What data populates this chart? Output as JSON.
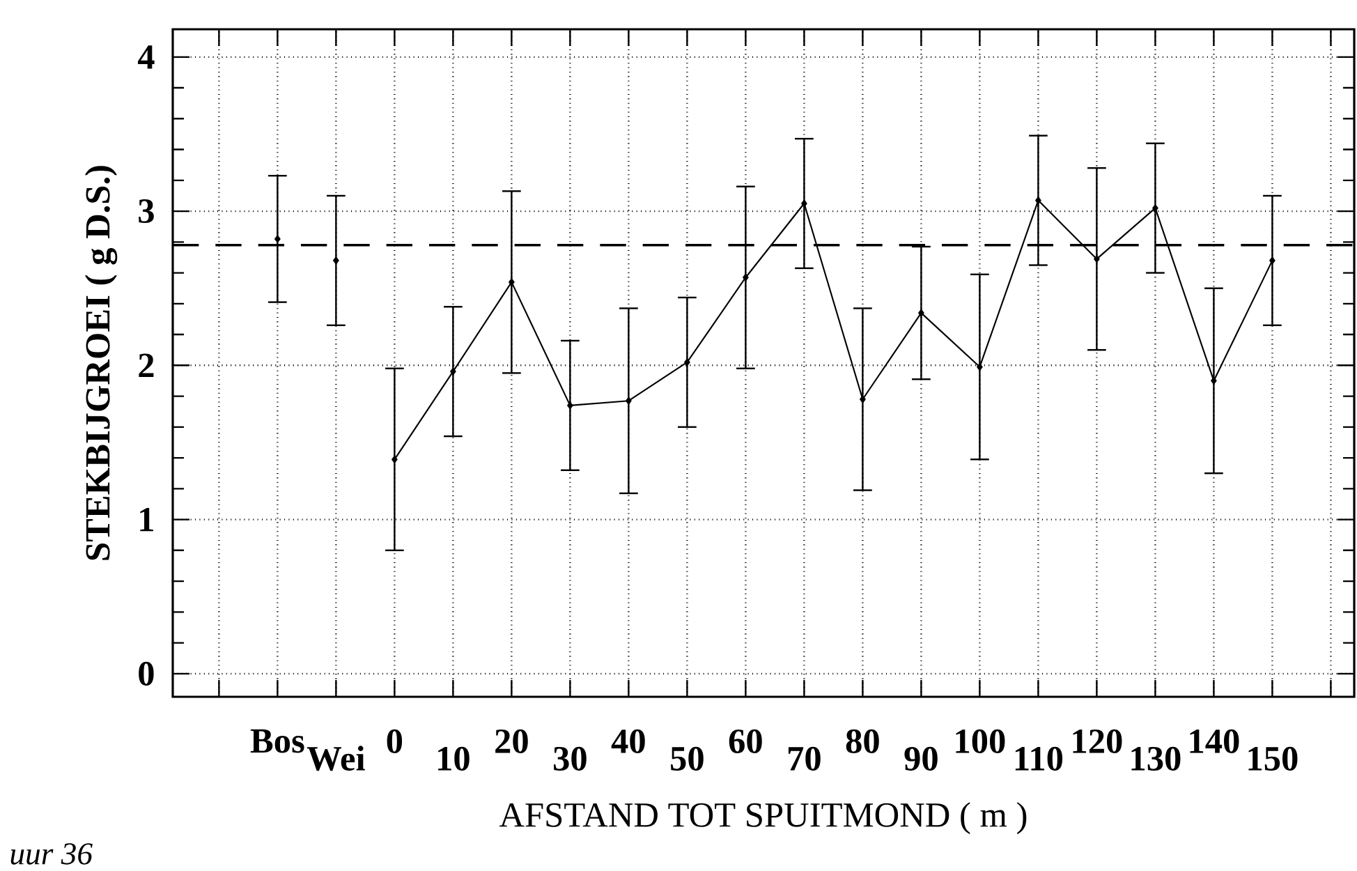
{
  "chart_data": {
    "type": "line",
    "xlabel": "AFSTAND TOT SPUITMOND ( m )",
    "ylabel": "STEKBIJGROEI ( g D.S.)",
    "categories": [
      "Bos",
      "Wei",
      "0",
      "10",
      "20",
      "30",
      "40",
      "50",
      "60",
      "70",
      "80",
      "90",
      "100",
      "110",
      "120",
      "130",
      "140",
      "150"
    ],
    "series": [
      {
        "type": "scatter",
        "color": "#000000",
        "values": [
          2.82,
          2.68,
          null,
          null,
          null,
          null,
          null,
          null,
          null,
          null,
          null,
          null,
          null,
          null,
          null,
          null,
          null,
          null
        ],
        "errors": [
          0.41,
          0.42,
          null,
          null,
          null,
          null,
          null,
          null,
          null,
          null,
          null,
          null,
          null,
          null,
          null,
          null,
          null,
          null
        ]
      },
      {
        "color": "#000000",
        "values": [
          null,
          null,
          1.39,
          1.96,
          2.54,
          1.74,
          1.77,
          2.02,
          2.57,
          3.05,
          1.78,
          2.34,
          1.99,
          3.07,
          2.69,
          3.02,
          1.9,
          2.68
        ],
        "errors": [
          null,
          null,
          0.59,
          0.42,
          0.59,
          0.42,
          0.6,
          0.42,
          0.59,
          0.42,
          0.59,
          0.43,
          0.6,
          0.42,
          0.59,
          0.42,
          0.6,
          0.42
        ]
      }
    ],
    "ylim": [
      -0.15,
      4.18
    ],
    "yticks": [
      0,
      1,
      2,
      3,
      4
    ],
    "grid": true,
    "marker": "diamond",
    "line_style": "solid",
    "ref_lines": [
      {
        "axis": "y",
        "value": 2.78,
        "line_style": "dashed"
      }
    ],
    "annotations": [
      "uur 36"
    ]
  }
}
